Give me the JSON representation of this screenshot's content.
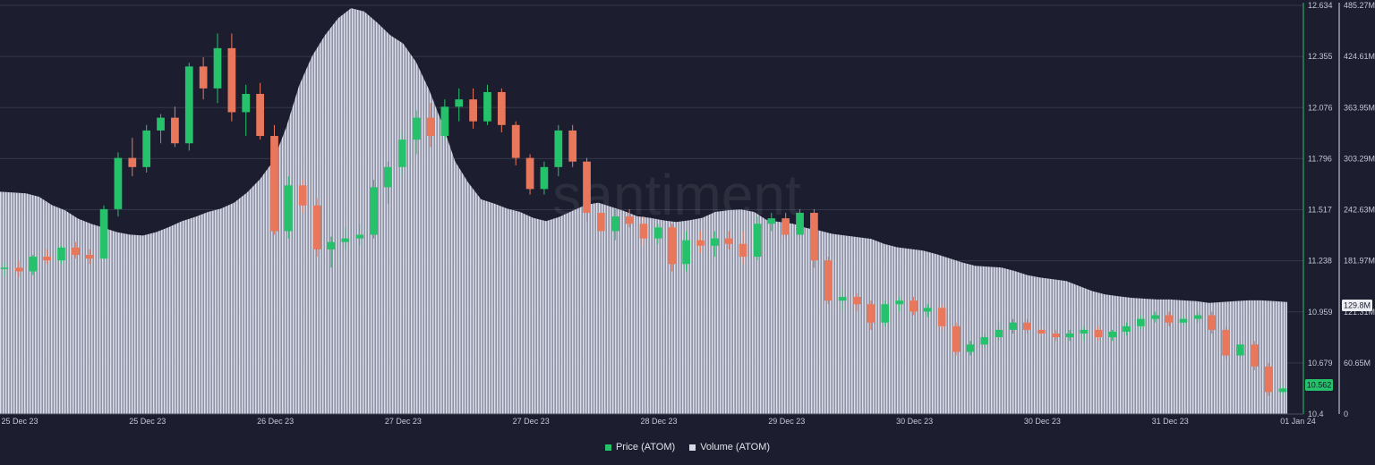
{
  "chart_data": {
    "type": "candlestick+area",
    "watermark": "santiment",
    "legend": [
      {
        "label": "Price (ATOM)",
        "color": "#26c26b"
      },
      {
        "label": "Volume (ATOM)",
        "color": "#d7dae6"
      }
    ],
    "x_ticks": [
      "25 Dec 23",
      "25 Dec 23",
      "26 Dec 23",
      "27 Dec 23",
      "27 Dec 23",
      "28 Dec 23",
      "29 Dec 23",
      "30 Dec 23",
      "30 Dec 23",
      "31 Dec 23",
      "01 Jan 24"
    ],
    "price_axis": {
      "ticks": [
        "12.634",
        "12.355",
        "12.076",
        "11.796",
        "11.517",
        "11.238",
        "10.959",
        "10.679",
        "10.4"
      ],
      "range": [
        10.4,
        12.634
      ],
      "current_value": "10.562"
    },
    "volume_axis": {
      "ticks": [
        "485.27M",
        "424.61M",
        "363.95M",
        "303.29M",
        "242.63M",
        "181.97M",
        "121.31M",
        "60.65M",
        "0"
      ],
      "range": [
        0,
        485.27
      ],
      "current_value": "129.8M"
    },
    "series": [
      {
        "name": "Volume (ATOM)",
        "unit": "M",
        "values": [
          264,
          263,
          262,
          258,
          248,
          242,
          232,
          226,
          221,
          216,
          213,
          212,
          216,
          222,
          229,
          234,
          240,
          244,
          251,
          263,
          279,
          300,
          340,
          390,
          425,
          450,
          470,
          482,
          478,
          465,
          450,
          440,
          418,
          385,
          345,
          300,
          275,
          255,
          250,
          244,
          240,
          233,
          229,
          234,
          241,
          248,
          251,
          246,
          241,
          235,
          233,
          230,
          228,
          230,
          233,
          240,
          242,
          243,
          240,
          230,
          228,
          226,
          221,
          218,
          214,
          212,
          210,
          208,
          202,
          198,
          196,
          194,
          190,
          185,
          180,
          176,
          175,
          174,
          170,
          165,
          162,
          160,
          158,
          152,
          146,
          142,
          140,
          138,
          137,
          136,
          136,
          135,
          134,
          132,
          133,
          134,
          135,
          135,
          134,
          133
        ]
      },
      {
        "name": "Price (ATOM)",
        "candles": [
          [
            11.2,
            11.23,
            11.15,
            11.2
          ],
          [
            11.2,
            11.24,
            11.15,
            11.18
          ],
          [
            11.18,
            11.27,
            11.16,
            11.26
          ],
          [
            11.26,
            11.3,
            11.22,
            11.24
          ],
          [
            11.24,
            11.32,
            11.22,
            11.31
          ],
          [
            11.31,
            11.34,
            11.25,
            11.27
          ],
          [
            11.27,
            11.3,
            11.22,
            11.25
          ],
          [
            11.25,
            11.54,
            11.24,
            11.52
          ],
          [
            11.52,
            11.83,
            11.48,
            11.8
          ],
          [
            11.8,
            11.91,
            11.7,
            11.75
          ],
          [
            11.75,
            11.98,
            11.72,
            11.95
          ],
          [
            11.95,
            12.04,
            11.88,
            12.02
          ],
          [
            12.02,
            12.08,
            11.86,
            11.88
          ],
          [
            11.88,
            12.32,
            11.84,
            12.3
          ],
          [
            12.3,
            12.35,
            12.12,
            12.18
          ],
          [
            12.18,
            12.48,
            12.1,
            12.4
          ],
          [
            12.4,
            12.48,
            12.0,
            12.05
          ],
          [
            12.05,
            12.2,
            11.92,
            12.15
          ],
          [
            12.15,
            12.21,
            11.9,
            11.92
          ],
          [
            11.92,
            11.98,
            11.38,
            11.4
          ],
          [
            11.4,
            11.7,
            11.36,
            11.65
          ],
          [
            11.65,
            11.68,
            11.5,
            11.54
          ],
          [
            11.54,
            11.58,
            11.26,
            11.3
          ],
          [
            11.3,
            11.37,
            11.2,
            11.34
          ],
          [
            11.34,
            11.42,
            11.3,
            11.36
          ],
          [
            11.36,
            11.44,
            11.32,
            11.38
          ],
          [
            11.38,
            11.68,
            11.36,
            11.64
          ],
          [
            11.64,
            11.78,
            11.55,
            11.75
          ],
          [
            11.75,
            11.95,
            11.7,
            11.9
          ],
          [
            11.9,
            12.06,
            11.82,
            12.02
          ],
          [
            12.02,
            12.1,
            11.86,
            11.92
          ],
          [
            11.92,
            12.12,
            11.9,
            12.08
          ],
          [
            12.08,
            12.18,
            12.0,
            12.12
          ],
          [
            12.12,
            12.18,
            11.96,
            12.0
          ],
          [
            12.0,
            12.2,
            11.98,
            12.16
          ],
          [
            12.16,
            12.18,
            11.94,
            11.98
          ],
          [
            11.98,
            12.0,
            11.76,
            11.8
          ],
          [
            11.8,
            11.82,
            11.6,
            11.63
          ],
          [
            11.63,
            11.78,
            11.6,
            11.75
          ],
          [
            11.75,
            11.98,
            11.7,
            11.95
          ],
          [
            11.95,
            11.98,
            11.75,
            11.78
          ],
          [
            11.78,
            11.8,
            11.45,
            11.5
          ],
          [
            11.5,
            11.52,
            11.36,
            11.4
          ],
          [
            11.4,
            11.52,
            11.35,
            11.48
          ],
          [
            11.48,
            11.52,
            11.42,
            11.44
          ],
          [
            11.44,
            11.48,
            11.32,
            11.36
          ],
          [
            11.36,
            11.44,
            11.33,
            11.42
          ],
          [
            11.42,
            11.44,
            11.18,
            11.22
          ],
          [
            11.22,
            11.4,
            11.18,
            11.35
          ],
          [
            11.35,
            11.4,
            11.28,
            11.32
          ],
          [
            11.32,
            11.4,
            11.26,
            11.36
          ],
          [
            11.36,
            11.4,
            11.3,
            11.33
          ],
          [
            11.33,
            11.4,
            11.22,
            11.26
          ],
          [
            11.26,
            11.48,
            11.24,
            11.44
          ],
          [
            11.44,
            11.5,
            11.4,
            11.47
          ],
          [
            11.47,
            11.5,
            11.36,
            11.38
          ],
          [
            11.38,
            11.52,
            11.36,
            11.5
          ],
          [
            11.5,
            11.52,
            11.2,
            11.24
          ],
          [
            11.24,
            11.26,
            11.0,
            11.02
          ],
          [
            11.02,
            11.08,
            10.96,
            11.04
          ],
          [
            11.04,
            11.06,
            10.96,
            11.0
          ],
          [
            11.0,
            11.02,
            10.86,
            10.9
          ],
          [
            10.9,
            11.02,
            10.88,
            11.0
          ],
          [
            11.0,
            11.04,
            10.96,
            11.02
          ],
          [
            11.02,
            11.04,
            10.94,
            10.96
          ],
          [
            10.96,
            11.0,
            10.93,
            10.98
          ],
          [
            10.98,
            11.0,
            10.86,
            10.88
          ],
          [
            10.88,
            10.9,
            10.72,
            10.74
          ],
          [
            10.74,
            10.8,
            10.72,
            10.78
          ],
          [
            10.78,
            10.84,
            10.76,
            10.82
          ],
          [
            10.82,
            10.9,
            10.8,
            10.86
          ],
          [
            10.86,
            10.92,
            10.84,
            10.9
          ],
          [
            10.9,
            10.92,
            10.84,
            10.86
          ],
          [
            10.86,
            10.88,
            10.82,
            10.84
          ],
          [
            10.84,
            10.86,
            10.8,
            10.82
          ],
          [
            10.82,
            10.86,
            10.8,
            10.84
          ],
          [
            10.84,
            10.88,
            10.8,
            10.86
          ],
          [
            10.86,
            10.88,
            10.8,
            10.82
          ],
          [
            10.82,
            10.86,
            10.8,
            10.85
          ],
          [
            10.85,
            10.9,
            10.83,
            10.88
          ],
          [
            10.88,
            10.94,
            10.86,
            10.92
          ],
          [
            10.92,
            10.96,
            10.9,
            10.94
          ],
          [
            10.94,
            10.96,
            10.88,
            10.9
          ],
          [
            10.9,
            10.94,
            10.88,
            10.92
          ],
          [
            10.92,
            10.96,
            10.9,
            10.94
          ],
          [
            10.94,
            10.96,
            10.84,
            10.86
          ],
          [
            10.86,
            10.88,
            10.7,
            10.72
          ],
          [
            10.72,
            10.8,
            10.7,
            10.78
          ],
          [
            10.78,
            10.8,
            10.64,
            10.66
          ],
          [
            10.66,
            10.68,
            10.5,
            10.52
          ],
          [
            10.52,
            10.56,
            10.5,
            10.54
          ]
        ]
      }
    ]
  }
}
